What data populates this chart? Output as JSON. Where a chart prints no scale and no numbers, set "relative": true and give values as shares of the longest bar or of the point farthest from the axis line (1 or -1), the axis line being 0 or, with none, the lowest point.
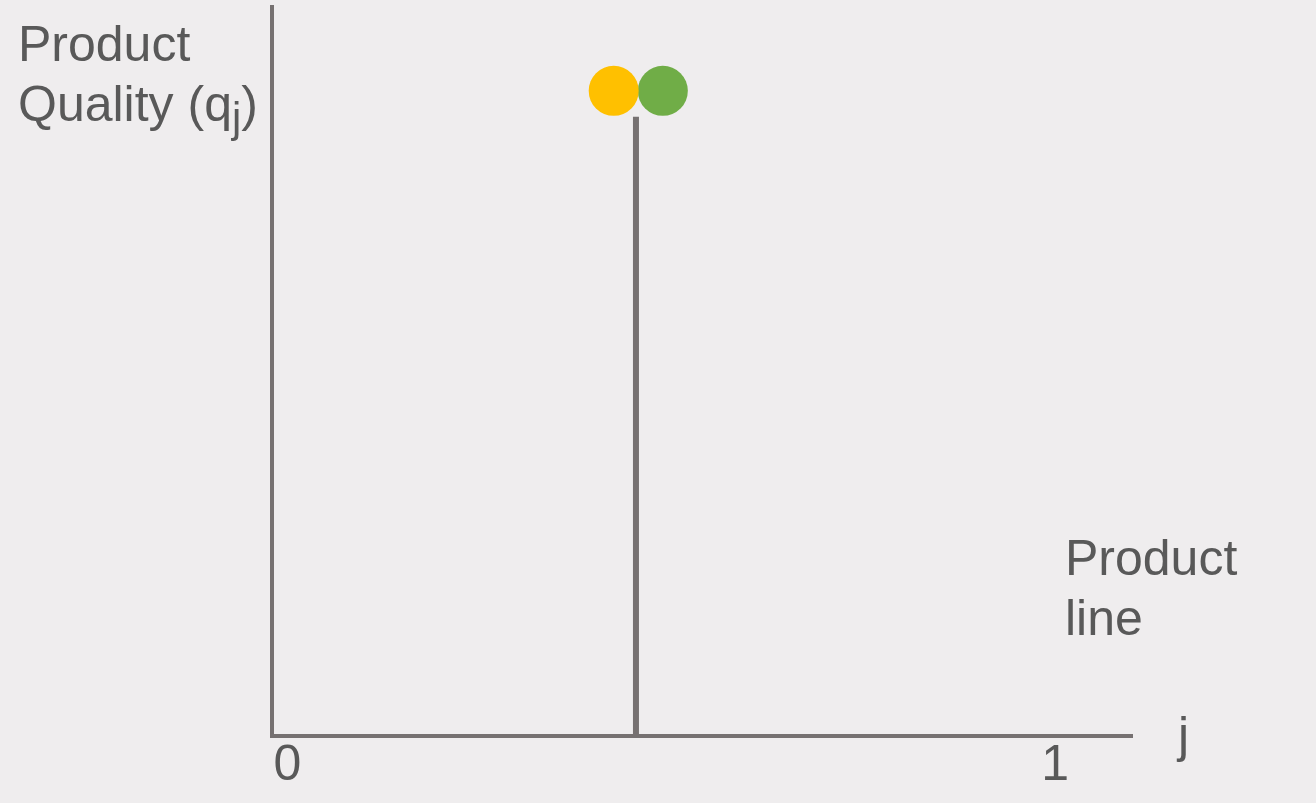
{
  "chart_data": {
    "type": "scatter",
    "relative": true,
    "xlabel": "Product line",
    "ylabel": "Product Quality (q$_{j}$)",
    "annotations": [
      "j"
    ],
    "xlim": [
      -0.02,
      1.1
    ],
    "xticks": [
      0,
      1
    ],
    "tick_labels": "x",
    "marker": "circle",
    "series": [
      {
        "type": "line",
        "x": [
          0.454,
          0.454
        ],
        "values": [
          0,
          0.96
        ],
        "color": "#767171",
        "marker": "none"
      },
      {
        "type": "scatter",
        "x": [
          0.425
        ],
        "values": [
          1
        ],
        "color": "#ffc000"
      },
      {
        "type": "scatter",
        "x": [
          0.489
        ],
        "values": [
          1
        ],
        "color": "#70ad47"
      }
    ]
  }
}
